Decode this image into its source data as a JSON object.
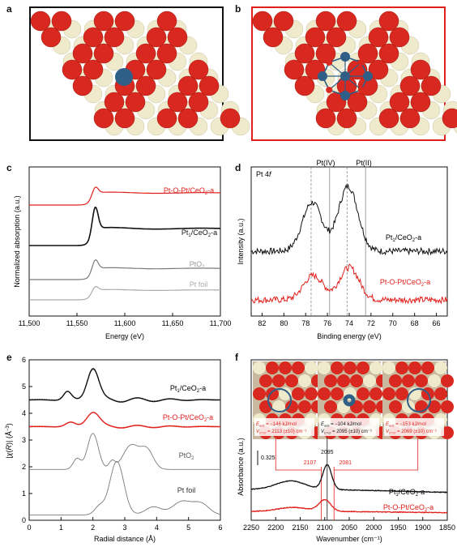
{
  "panels": {
    "a": {
      "label": "a"
    },
    "b": {
      "label": "b"
    },
    "c": {
      "label": "c"
    },
    "d": {
      "label": "d"
    },
    "e": {
      "label": "e"
    },
    "f": {
      "label": "f"
    }
  },
  "colors": {
    "red": "#e0201b",
    "black": "#111111",
    "gray": "#7a7a7a",
    "lightgray": "#aaaaaa",
    "ceria_o": "#d8281f",
    "ceria_ce": "#eeeacb",
    "pt": "#2f5f86"
  },
  "chart_data": [
    {
      "panel": "c",
      "type": "line",
      "xlabel": "Energy (eV)",
      "ylabel": "Normalized absorption (a.u.)",
      "xlim": [
        11500,
        11700
      ],
      "xticks": [
        "11,500",
        "11,550",
        "11,600",
        "11,650",
        "11,700"
      ],
      "series": [
        {
          "name": "Pt-O-Pt/CeO2-a",
          "label_main": "Pt-O-Pt/CeO",
          "label_sub": "2",
          "label_tail": "-a",
          "color": "#e0201b"
        },
        {
          "name": "Pt1/CeO2-a",
          "label_main": "Pt",
          "label_sub1": "1",
          "label_mid": "/CeO",
          "label_sub": "2",
          "label_tail": "-a",
          "color": "#111111"
        },
        {
          "name": "PtO2",
          "label_main": "PtO",
          "label_sub": "2",
          "color": "#7a7a7a"
        },
        {
          "name": "Pt foil",
          "label_main": "Pt foil",
          "color": "#aaaaaa"
        }
      ]
    },
    {
      "panel": "d",
      "type": "line",
      "title": "Pt 4f",
      "title_main": "Pt 4",
      "title_ital": "f",
      "xlabel": "Binding energy (eV)",
      "ylabel": "Intensity (a.u.)",
      "xlim": [
        83,
        65
      ],
      "xticks": [
        "82",
        "80",
        "78",
        "76",
        "74",
        "72",
        "70",
        "68",
        "66"
      ],
      "annotations": [
        "Pt(IV)",
        "Pt(II)"
      ],
      "reference_lines": [
        77.5,
        75.8,
        74.2,
        72.5
      ],
      "series": [
        {
          "name": "Pt1/CeO2-a",
          "color": "#111111",
          "peaks": [
            77.4,
            74.1
          ]
        },
        {
          "name": "Pt-O-Pt/CeO2-a",
          "color": "#e0201b",
          "peaks": [
            77.3,
            74.0
          ]
        }
      ]
    },
    {
      "panel": "e",
      "type": "line",
      "xlabel": "Radial distance (Å)",
      "ylabel": "|χ(R)| (Å⁻³)",
      "xlim": [
        0,
        6
      ],
      "ylim": [
        0,
        6
      ],
      "xticks": [
        "0",
        "1",
        "2",
        "3",
        "4",
        "5",
        "6"
      ],
      "yticks": [
        "0",
        "1",
        "2",
        "3",
        "4",
        "5",
        "6"
      ],
      "series": [
        {
          "name": "Pt1/CeO2-a",
          "color": "#111111",
          "peak_R": 2.0
        },
        {
          "name": "Pt-O-Pt/CeO2-a",
          "color": "#e0201b",
          "peak_R": 2.0
        },
        {
          "name": "PtO2",
          "color": "#7a7a7a",
          "peak_R": 2.0
        },
        {
          "name": "Pt foil",
          "color": "#7a7a7a",
          "peak_R": 2.75
        }
      ]
    },
    {
      "panel": "f",
      "type": "line",
      "xlabel": "Wavenumber (cm⁻¹)",
      "ylabel": "Absorbance (a.u.)",
      "xlim": [
        2250,
        1850
      ],
      "xticks": [
        "2250",
        "2200",
        "2150",
        "2100",
        "2050",
        "2000",
        "1950",
        "1900",
        "1850"
      ],
      "scale_bar": "0.325",
      "peak_labels": [
        "2107",
        "2095",
        "2081"
      ],
      "insets": [
        {
          "e_ads": "E_ads = −146 kJ/mol",
          "e_main": "E",
          "e_sub": "ads",
          "e_val": " = −146 kJ/mol",
          "v_main": "V",
          "v_sub": "C=O",
          "v_val": " = 2113 (±10) cm⁻¹",
          "color": "#e0201b"
        },
        {
          "e_ads": "E_ads = −104 kJ/mol",
          "e_main": "E",
          "e_sub": "ads",
          "e_val": " = −104 kJ/mol",
          "v_main": "V",
          "v_sub": "C=O",
          "v_val": " = 2095 (±10) cm⁻¹",
          "color": "#111111"
        },
        {
          "e_ads": "E_ads = −153 kJ/mol",
          "e_main": "E",
          "e_sub": "ads",
          "e_val": " = −153 kJ/mol",
          "v_main": "V",
          "v_sub": "C=O",
          "v_val": " = 2069 (±10) cm⁻¹",
          "color": "#e0201b"
        }
      ],
      "series": [
        {
          "name": "Pt1/CeO2-a",
          "color": "#111111",
          "peak": 2095
        },
        {
          "name": "Pt-O-Pt/CeO2-a",
          "color": "#e0201b",
          "peak": 2107
        }
      ]
    }
  ]
}
